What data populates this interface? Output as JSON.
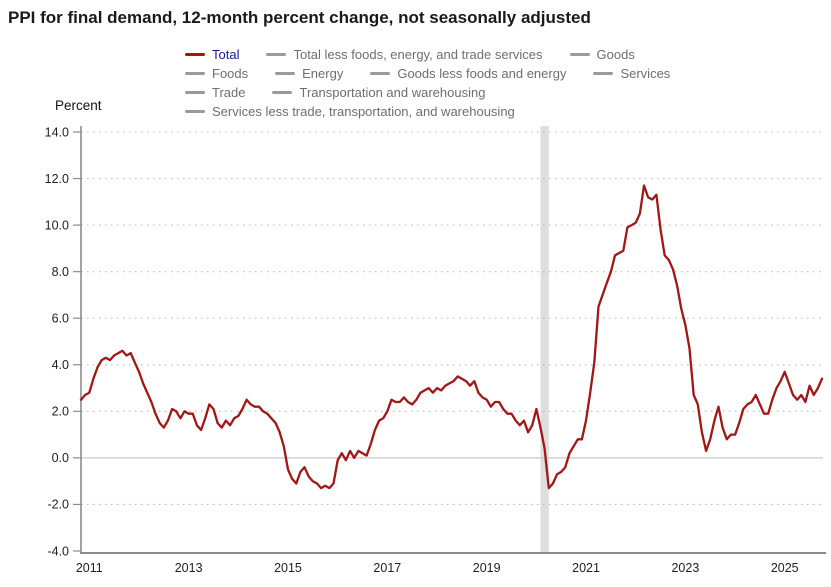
{
  "page": {
    "title": "PPI for final demand, 12-month percent change, not seasonally adjusted",
    "y_axis_unit_label": "Percent"
  },
  "colors": {
    "accent_line": "#a11717",
    "active_legend_text": "#1b1b8c",
    "inactive_legend": "#9a9a9a",
    "legend_text_gray": "#6e6e6e",
    "axis": "#8c8c8c",
    "gridline": "#bdbdbd",
    "zero_line": "#c9c9c9",
    "recession_band": "#dedede",
    "axis_text": "#222222",
    "title_text": "#1a1a1a"
  },
  "legend": {
    "rows": [
      [
        {
          "label": "Total",
          "active": true
        },
        {
          "label": "Total less foods, energy, and trade services",
          "active": false
        },
        {
          "label": "Goods",
          "active": false
        }
      ],
      [
        {
          "label": "Foods",
          "active": false
        },
        {
          "label": "Energy",
          "active": false
        },
        {
          "label": "Goods less foods and energy",
          "active": false
        },
        {
          "label": "Services",
          "active": false
        }
      ],
      [
        {
          "label": "Trade",
          "active": false
        },
        {
          "label": "Transportation and warehousing",
          "active": false
        }
      ],
      [
        {
          "label": "Services less trade, transportation, and warehousing",
          "active": false
        }
      ]
    ]
  },
  "chart_data": {
    "type": "line",
    "title": "PPI for final demand, 12-month percent change, not seasonally adjusted",
    "ylabel": "Percent",
    "xlabel": "",
    "ylim": [
      -4.0,
      14.0
    ],
    "y_ticks": [
      "14.0",
      "12.0",
      "10.0",
      "8.0",
      "6.0",
      "4.0",
      "2.0",
      "0.0",
      "-2.0",
      "-4.0"
    ],
    "x_tick_labels": [
      "2011",
      "2013",
      "2015",
      "2017",
      "2019",
      "2021",
      "2023",
      "2025"
    ],
    "grid": "dotted horizontal gridlines, solid zero line",
    "legend_position": "top",
    "frequency": "monthly",
    "start_month": "2010-11",
    "recession_band": {
      "from": "2020-02",
      "to": "2020-04"
    },
    "series": [
      {
        "name": "Total",
        "color": "#a11717",
        "values": [
          2.5,
          2.7,
          2.8,
          3.4,
          3.9,
          4.2,
          4.3,
          4.2,
          4.4,
          4.5,
          4.6,
          4.4,
          4.5,
          4.1,
          3.7,
          3.2,
          2.8,
          2.4,
          1.9,
          1.5,
          1.3,
          1.6,
          2.1,
          2.0,
          1.7,
          2.0,
          1.9,
          1.9,
          1.4,
          1.2,
          1.7,
          2.3,
          2.1,
          1.5,
          1.3,
          1.6,
          1.4,
          1.7,
          1.8,
          2.1,
          2.5,
          2.3,
          2.2,
          2.2,
          2.0,
          1.9,
          1.7,
          1.5,
          1.1,
          0.5,
          -0.5,
          -0.9,
          -1.1,
          -0.6,
          -0.4,
          -0.8,
          -1.0,
          -1.1,
          -1.3,
          -1.2,
          -1.3,
          -1.1,
          -0.1,
          0.2,
          -0.1,
          0.3,
          0.0,
          0.3,
          0.2,
          0.1,
          0.6,
          1.2,
          1.6,
          1.7,
          2.0,
          2.5,
          2.4,
          2.4,
          2.6,
          2.4,
          2.3,
          2.5,
          2.8,
          2.9,
          3.0,
          2.8,
          3.0,
          2.9,
          3.1,
          3.2,
          3.3,
          3.5,
          3.4,
          3.3,
          3.1,
          3.3,
          2.8,
          2.6,
          2.5,
          2.2,
          2.4,
          2.4,
          2.1,
          1.9,
          1.9,
          1.6,
          1.4,
          1.6,
          1.1,
          1.4,
          2.1,
          1.3,
          0.4,
          -1.3,
          -1.1,
          -0.7,
          -0.6,
          -0.4,
          0.2,
          0.5,
          0.8,
          0.8,
          1.6,
          2.8,
          4.1,
          6.5,
          7.0,
          7.5,
          8.0,
          8.7,
          8.8,
          8.9,
          9.9,
          10.0,
          10.1,
          10.5,
          11.7,
          11.2,
          11.1,
          11.3,
          9.8,
          8.7,
          8.5,
          8.1,
          7.4,
          6.4,
          5.7,
          4.7,
          2.7,
          2.3,
          1.1,
          0.3,
          0.8,
          1.6,
          2.2,
          1.3,
          0.8,
          1.0,
          1.0,
          1.5,
          2.1,
          2.3,
          2.4,
          2.7,
          2.3,
          1.9,
          1.9,
          2.5,
          3.0,
          3.3,
          3.7,
          3.2,
          2.7,
          2.5,
          2.7,
          2.4,
          3.1,
          2.7,
          3.0,
          3.4
        ]
      }
    ]
  }
}
